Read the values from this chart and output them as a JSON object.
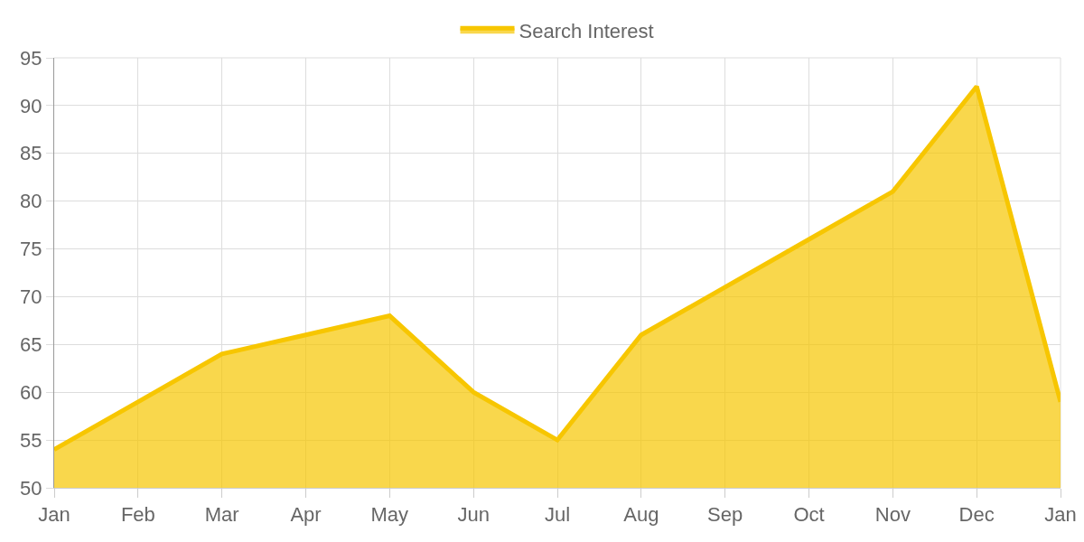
{
  "chart_data": {
    "type": "area",
    "categories": [
      "Jan",
      "Feb",
      "Mar",
      "Apr",
      "May",
      "Jun",
      "Jul",
      "Aug",
      "Sep",
      "Oct",
      "Nov",
      "Dec",
      "Jan"
    ],
    "series": [
      {
        "name": "Search Interest",
        "color": "#f7c600",
        "values": [
          54,
          59,
          64,
          66,
          68,
          60,
          55,
          66,
          71,
          76,
          81,
          92,
          59
        ]
      }
    ],
    "ylim": [
      50,
      95
    ],
    "yticks": [
      50,
      55,
      60,
      65,
      70,
      75,
      80,
      85,
      90,
      95
    ],
    "grid": true,
    "legend": "top",
    "marker": "none",
    "line_style": "solid"
  }
}
